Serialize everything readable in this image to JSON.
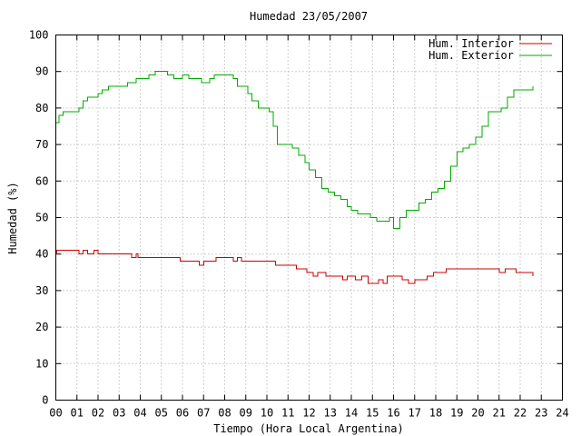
{
  "chart_data": {
    "type": "line",
    "title": "Humedad 23/05/2007",
    "xlabel": "Tiempo (Hora Local Argentina)",
    "ylabel": "Humedad (%)",
    "xlim": [
      0,
      24
    ],
    "ylim": [
      0,
      100
    ],
    "x_ticks": [
      0,
      1,
      2,
      3,
      4,
      5,
      6,
      7,
      8,
      9,
      10,
      11,
      12,
      13,
      14,
      15,
      16,
      17,
      18,
      19,
      20,
      21,
      22,
      23,
      24
    ],
    "x_tick_labels": [
      "00",
      "01",
      "02",
      "03",
      "04",
      "05",
      "06",
      "07",
      "08",
      "09",
      "10",
      "11",
      "12",
      "13",
      "14",
      "15",
      "16",
      "17",
      "18",
      "19",
      "20",
      "21",
      "22",
      "23",
      "24"
    ],
    "y_ticks": [
      0,
      10,
      20,
      30,
      40,
      50,
      60,
      70,
      80,
      90,
      100
    ],
    "y_tick_labels": [
      "0",
      "10",
      "20",
      "30",
      "40",
      "50",
      "60",
      "70",
      "80",
      "90",
      "100"
    ],
    "grid": true,
    "legend_position": "top-right",
    "series": [
      {
        "name": "Hum. Interior",
        "color": "#cc0000",
        "x": [
          0.0,
          0.05,
          0.5,
          1.0,
          1.1,
          1.3,
          1.5,
          1.8,
          2.0,
          2.3,
          2.8,
          3.2,
          3.6,
          3.8,
          3.9,
          4.0,
          4.3,
          4.6,
          5.0,
          5.5,
          5.9,
          6.2,
          6.6,
          6.8,
          7.0,
          7.2,
          7.6,
          8.0,
          8.4,
          8.6,
          8.8,
          9.2,
          9.7,
          10.0,
          10.4,
          11.0,
          11.4,
          11.6,
          11.9,
          12.2,
          12.4,
          12.8,
          13.2,
          13.4,
          13.6,
          13.8,
          14.0,
          14.2,
          14.5,
          14.8,
          15.0,
          15.3,
          15.5,
          15.7,
          16.0,
          16.4,
          16.7,
          17.0,
          17.3,
          17.6,
          17.9,
          18.2,
          18.5,
          19.0,
          19.5,
          20.0,
          20.4,
          20.7,
          21.0,
          21.3,
          21.5,
          21.8,
          22.2,
          22.5,
          22.6
        ],
        "y": [
          40,
          41,
          41,
          41,
          40,
          41,
          40,
          41,
          40,
          40,
          40,
          40,
          39,
          40,
          39,
          39,
          39,
          39,
          39,
          39,
          38,
          38,
          38,
          37,
          38,
          38,
          39,
          39,
          38,
          39,
          38,
          38,
          38,
          38,
          37,
          37,
          36,
          36,
          35,
          34,
          35,
          34,
          34,
          34,
          33,
          34,
          34,
          33,
          34,
          32,
          32,
          33,
          32,
          34,
          34,
          33,
          32,
          33,
          33,
          34,
          35,
          35,
          36,
          36,
          36,
          36,
          36,
          36,
          35,
          36,
          36,
          35,
          35,
          35,
          34
        ]
      },
      {
        "name": "Hum. Exterior",
        "color": "#00aa00",
        "x": [
          0.0,
          0.15,
          0.35,
          0.6,
          0.9,
          1.1,
          1.3,
          1.5,
          1.8,
          2.0,
          2.2,
          2.5,
          2.9,
          3.1,
          3.4,
          3.8,
          4.1,
          4.4,
          4.7,
          5.0,
          5.3,
          5.6,
          6.0,
          6.3,
          6.6,
          6.9,
          7.1,
          7.3,
          7.5,
          7.8,
          8.1,
          8.4,
          8.6,
          8.9,
          9.1,
          9.3,
          9.6,
          9.9,
          10.1,
          10.3,
          10.5,
          10.8,
          11.0,
          11.2,
          11.5,
          11.8,
          12.0,
          12.3,
          12.6,
          12.9,
          13.2,
          13.5,
          13.8,
          14.0,
          14.3,
          14.6,
          14.9,
          15.2,
          15.5,
          15.8,
          16.0,
          16.3,
          16.6,
          16.9,
          17.2,
          17.5,
          17.8,
          18.1,
          18.4,
          18.7,
          19.0,
          19.3,
          19.6,
          19.9,
          20.2,
          20.5,
          20.8,
          21.1,
          21.4,
          21.7,
          22.0,
          22.3,
          22.5,
          22.6
        ],
        "y": [
          76,
          78,
          79,
          79,
          79,
          80,
          82,
          83,
          83,
          84,
          85,
          86,
          86,
          86,
          87,
          88,
          88,
          89,
          90,
          90,
          89,
          88,
          89,
          88,
          88,
          87,
          87,
          88,
          89,
          89,
          89,
          88,
          86,
          86,
          84,
          82,
          80,
          80,
          79,
          75,
          70,
          70,
          70,
          69,
          67,
          65,
          63,
          61,
          58,
          57,
          56,
          55,
          53,
          52,
          51,
          51,
          50,
          49,
          49,
          50,
          47,
          50,
          52,
          52,
          54,
          55,
          57,
          58,
          60,
          64,
          68,
          69,
          70,
          72,
          75,
          79,
          79,
          80,
          83,
          85,
          85,
          85,
          85,
          86
        ]
      }
    ]
  }
}
